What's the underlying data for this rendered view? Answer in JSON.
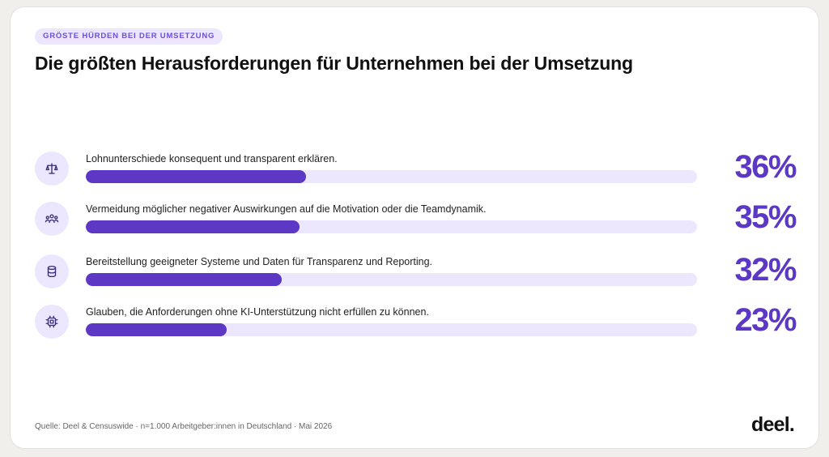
{
  "tag": "GRÖSTE HÜRDEN BEI DER UMSETZUNG",
  "title": "Die größten Herausforderungen für Unternehmen bei der Umsetzung",
  "chart_data": {
    "type": "bar",
    "orientation": "horizontal",
    "xlim": [
      0,
      100
    ],
    "categories": [
      "Lohnunterschiede konsequent und transparent erklären.",
      "Vermeidung möglicher negativer Auswirkungen auf die Motivation oder die Teamdynamik.",
      "Bereitstellung geeigneter Systeme und Daten für Transparenz und Reporting.",
      "Glauben, die Anforderungen ohne KI-Unterstützung nicht erfüllen zu können."
    ],
    "values": [
      36,
      35,
      32,
      23
    ],
    "value_labels": [
      "36%",
      "35%",
      "32%",
      "23%"
    ],
    "icons": [
      "scale-icon",
      "team-icon",
      "database-icon",
      "chip-icon"
    ],
    "bar_color": "#5c38c4",
    "track_color": "#ede6ff"
  },
  "footer": {
    "source": "Quelle: Deel & Censuswide · n=1.000 Arbeitgeber:innen in Deutschland · Mai 2026",
    "logo": "deel."
  }
}
